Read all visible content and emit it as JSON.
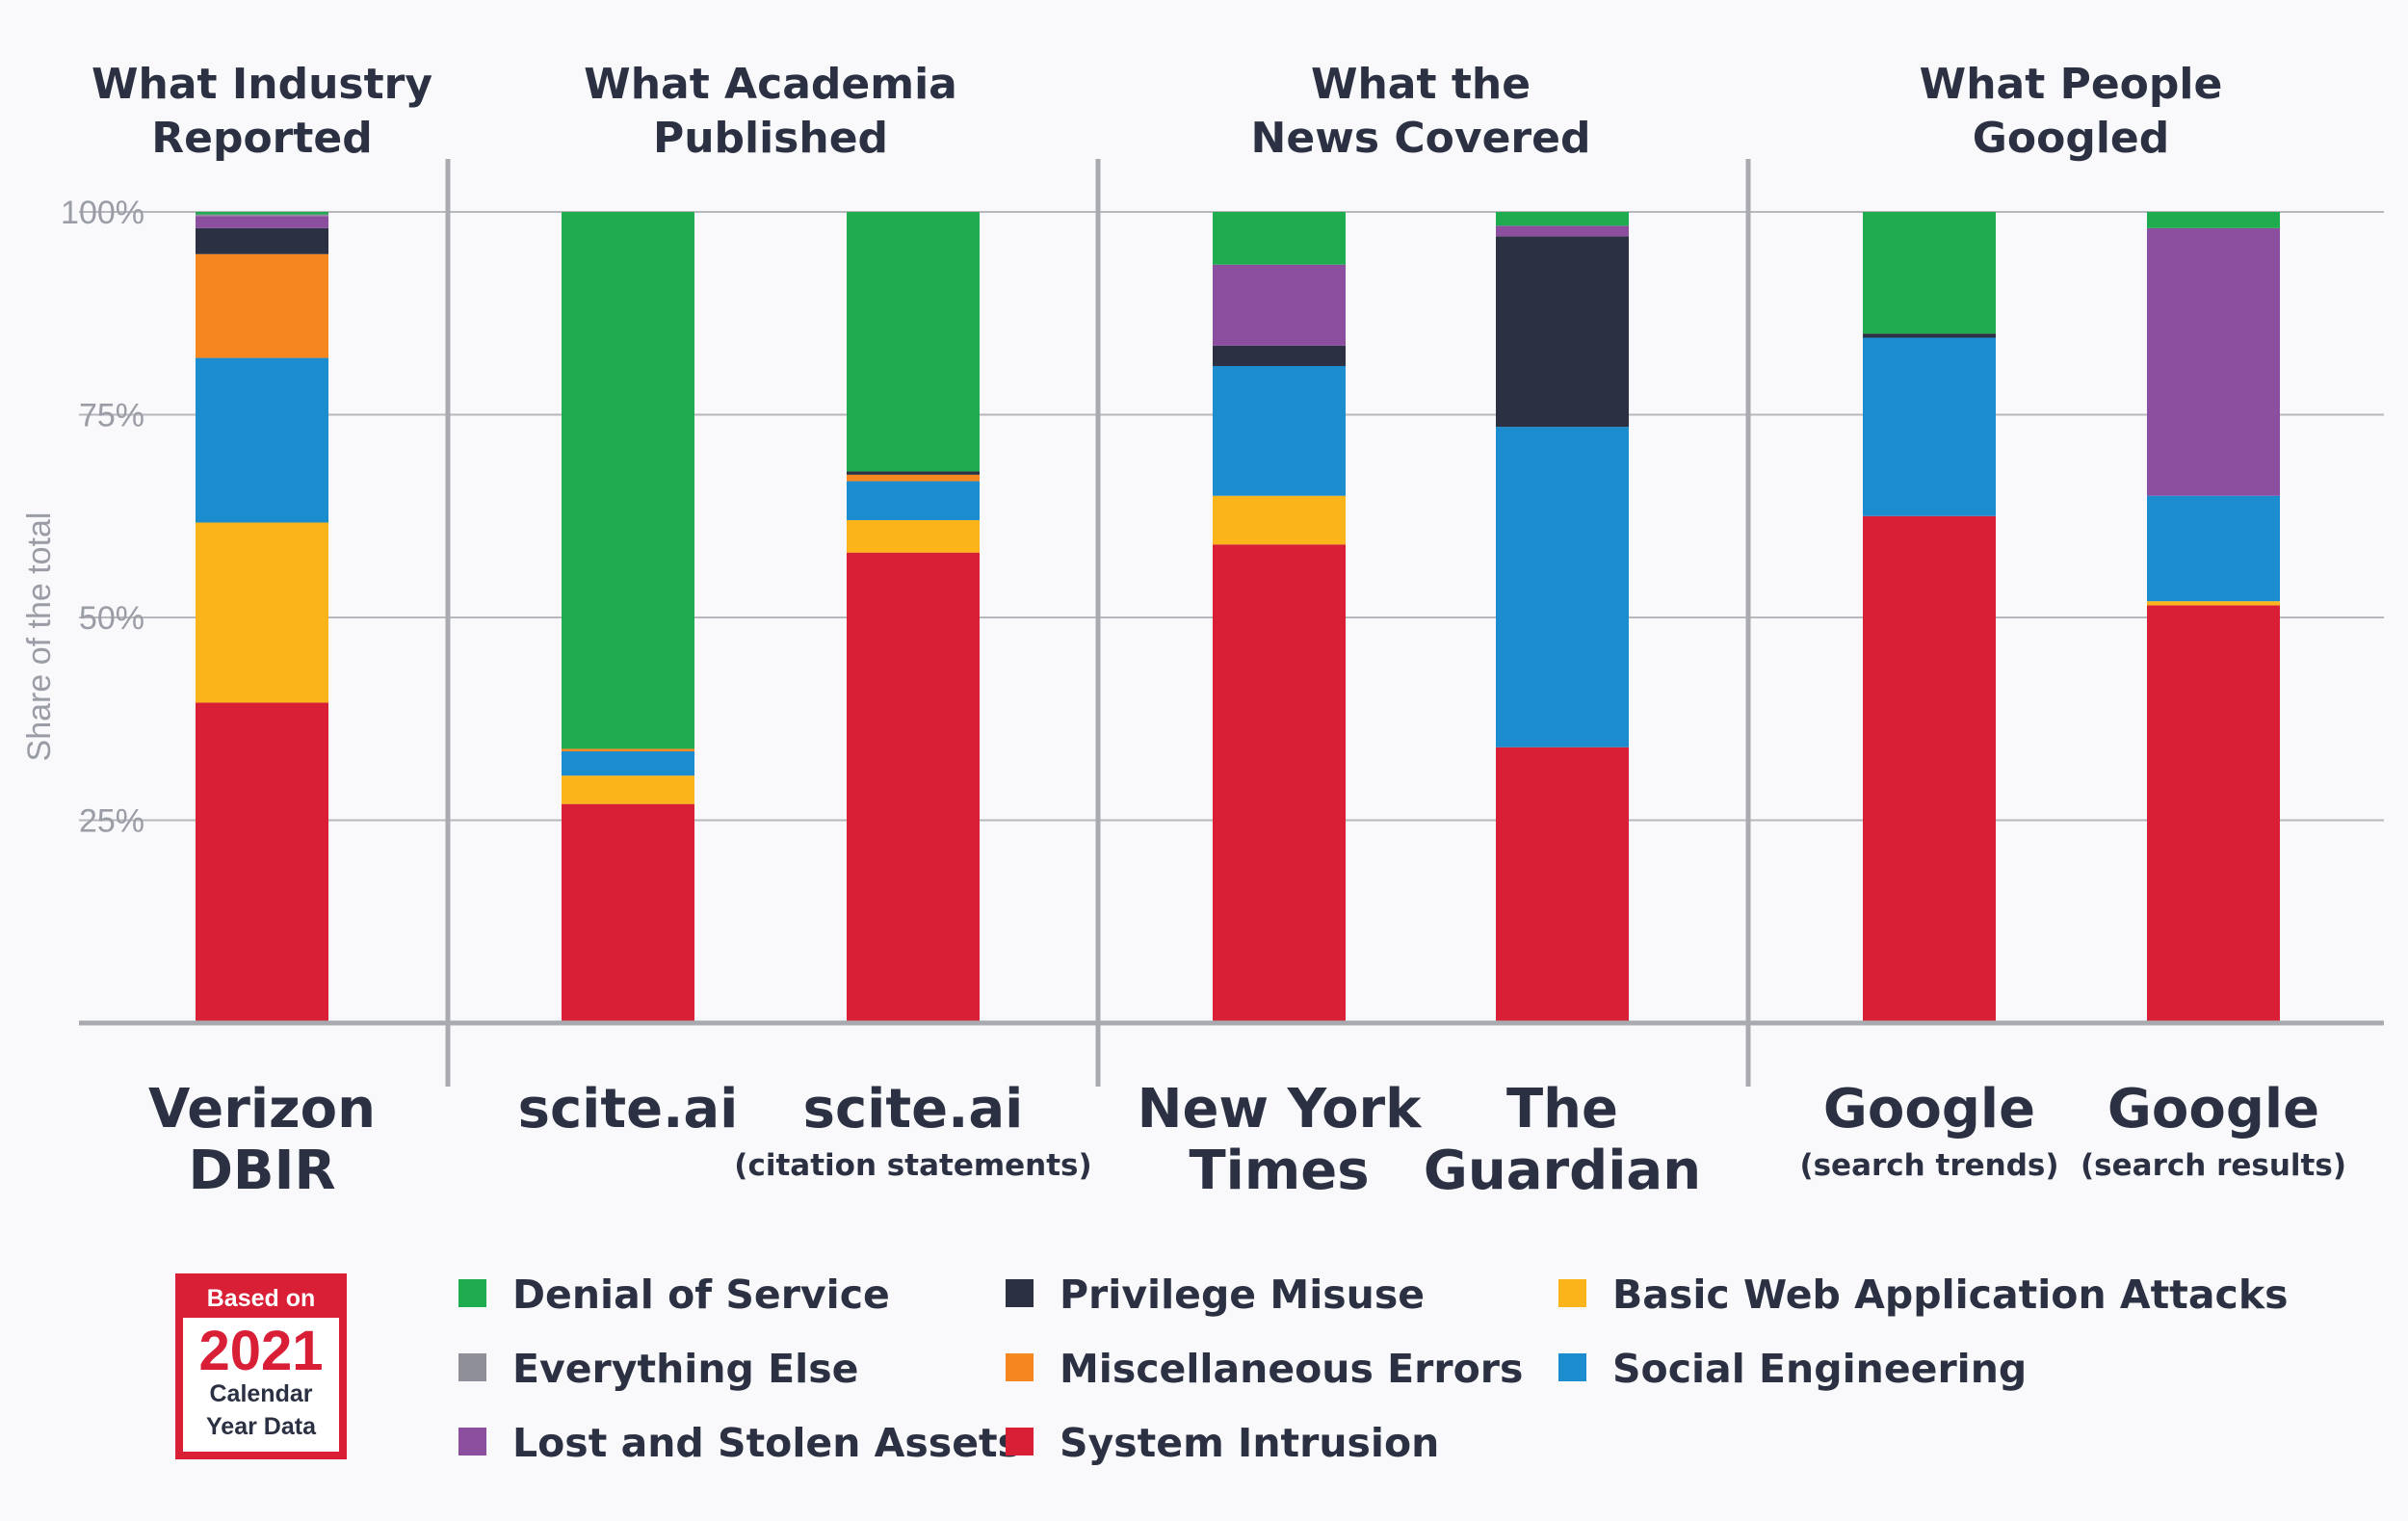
{
  "chart_data": {
    "type": "bar",
    "stacked": true,
    "ylabel": "Share of the total",
    "ylim": [
      0,
      100
    ],
    "yticks": [
      "25%",
      "50%",
      "75%",
      "100%"
    ],
    "ytick_values": [
      25,
      50,
      75,
      100
    ],
    "grid": true,
    "legend_position": "bottom",
    "groups": [
      {
        "title": [
          "What Industry",
          "Reported"
        ],
        "columns": [
          0
        ]
      },
      {
        "title": [
          "What Academia",
          "Published"
        ],
        "columns": [
          1,
          2
        ]
      },
      {
        "title": [
          "What the",
          "News Covered"
        ],
        "columns": [
          3,
          4
        ]
      },
      {
        "title": [
          "What People",
          "Googled"
        ],
        "columns": [
          5,
          6
        ]
      }
    ],
    "categories": [
      {
        "label": [
          "Verizon",
          "DBIR"
        ],
        "sub": ""
      },
      {
        "label": [
          "scite.ai"
        ],
        "sub": ""
      },
      {
        "label": [
          "scite.ai"
        ],
        "sub": "(citation statements)"
      },
      {
        "label": [
          "New York",
          "Times"
        ],
        "sub": ""
      },
      {
        "label": [
          "The",
          "Guardian"
        ],
        "sub": ""
      },
      {
        "label": [
          "Google"
        ],
        "sub": "(search trends)"
      },
      {
        "label": [
          "Google"
        ],
        "sub": "(search results)"
      }
    ],
    "series": [
      {
        "name": "System Intrusion",
        "color": "#d91f35",
        "values": [
          39.5,
          27,
          58,
          59,
          34,
          62.5,
          51.5
        ]
      },
      {
        "name": "Basic Web Application Attacks",
        "color": "#fbb51b",
        "values": [
          22.2,
          3.5,
          4,
          6,
          0,
          0,
          0.5
        ]
      },
      {
        "name": "Social Engineering",
        "color": "#1b8ccd",
        "values": [
          20.3,
          3,
          4.8,
          16,
          39.5,
          22,
          13
        ]
      },
      {
        "name": "Miscellaneous Errors",
        "color": "#f6861f",
        "values": [
          12.8,
          0.3,
          0.8,
          0,
          0,
          0,
          0
        ]
      },
      {
        "name": "Privilege Misuse",
        "color": "#2b3142",
        "values": [
          3.2,
          0,
          0.4,
          2.5,
          23.5,
          0.5,
          0
        ]
      },
      {
        "name": "Lost and Stolen Assets",
        "color": "#8c4fa0",
        "values": [
          1.5,
          0,
          0,
          10,
          1.3,
          0,
          33
        ]
      },
      {
        "name": "Everything Else",
        "color": "#8e8f99",
        "values": [
          0.2,
          0,
          0,
          0,
          0,
          0,
          0
        ]
      },
      {
        "name": "Denial of Service",
        "color": "#1eac4e",
        "values": [
          0.3,
          66.2,
          32,
          6.5,
          1.7,
          15,
          2
        ]
      }
    ],
    "legend_order": [
      "Denial of Service",
      "Everything Else",
      "Lost and Stolen Assets",
      "Privilege Misuse",
      "Miscellaneous Errors",
      "System Intrusion",
      "Basic Web Application Attacks",
      "Social Engineering"
    ]
  },
  "badge": {
    "line1": "Based on",
    "year": "2021",
    "line3": "Calendar",
    "line4": "Year Data",
    "color": "#d91f35"
  }
}
